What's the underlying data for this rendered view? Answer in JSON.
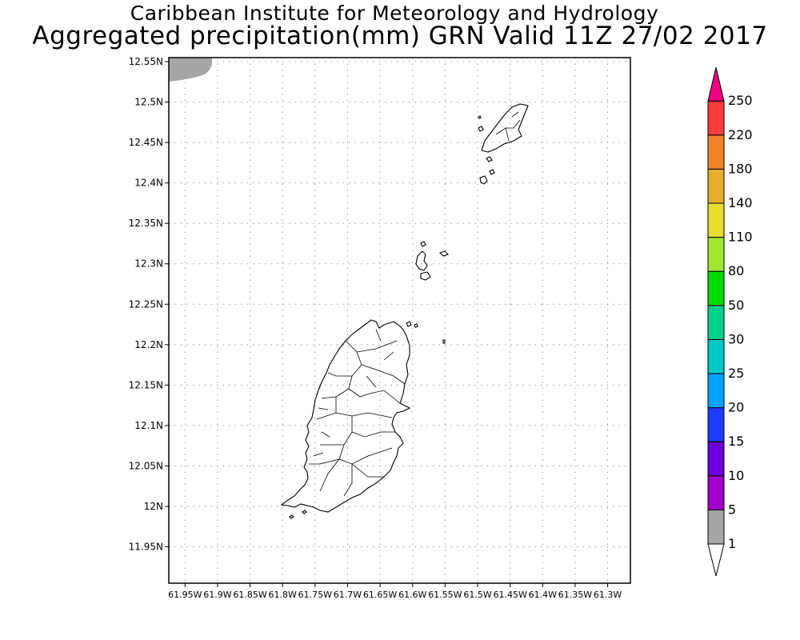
{
  "header": {
    "line1": "Caribbean Institute for Meteorology and Hydrology",
    "line2": "Aggregated precipitation(mm) GRN Valid 11Z 27/02 2017"
  },
  "map": {
    "lat_range": [
      11.905,
      12.555
    ],
    "lon_range": [
      -61.975,
      -61.265
    ],
    "lat_ticks": [
      {
        "value": 12.55,
        "label": "12.55N"
      },
      {
        "value": 12.5,
        "label": "12.5N"
      },
      {
        "value": 12.45,
        "label": "12.45N"
      },
      {
        "value": 12.4,
        "label": "12.4N"
      },
      {
        "value": 12.35,
        "label": "12.35N"
      },
      {
        "value": 12.3,
        "label": "12.3N"
      },
      {
        "value": 12.25,
        "label": "12.25N"
      },
      {
        "value": 12.2,
        "label": "12.2N"
      },
      {
        "value": 12.15,
        "label": "12.15N"
      },
      {
        "value": 12.1,
        "label": "12.1N"
      },
      {
        "value": 12.05,
        "label": "12.05N"
      },
      {
        "value": 12.0,
        "label": "12N"
      },
      {
        "value": 11.95,
        "label": "11.95N"
      }
    ],
    "lon_ticks": [
      {
        "value": -61.95,
        "label": "61.95W"
      },
      {
        "value": -61.9,
        "label": "61.9W"
      },
      {
        "value": -61.85,
        "label": "61.85W"
      },
      {
        "value": -61.8,
        "label": "61.8W"
      },
      {
        "value": -61.75,
        "label": "61.75W"
      },
      {
        "value": -61.7,
        "label": "61.7W"
      },
      {
        "value": -61.65,
        "label": "61.65W"
      },
      {
        "value": -61.6,
        "label": "61.6W"
      },
      {
        "value": -61.55,
        "label": "61.55W"
      },
      {
        "value": -61.5,
        "label": "61.5W"
      },
      {
        "value": -61.45,
        "label": "61.45W"
      },
      {
        "value": -61.4,
        "label": "61.4W"
      },
      {
        "value": -61.35,
        "label": "61.35W"
      },
      {
        "value": -61.3,
        "label": "61.3W"
      }
    ],
    "grid": true,
    "precip_area_color": "#a6a6a6"
  },
  "colorbar": {
    "levels": [
      {
        "label": "1",
        "color": "#a6a6a6"
      },
      {
        "label": "5",
        "color": "#a000c8"
      },
      {
        "label": "10",
        "color": "#6e00dc"
      },
      {
        "label": "15",
        "color": "#1e3cff"
      },
      {
        "label": "20",
        "color": "#00a0ff"
      },
      {
        "label": "25",
        "color": "#00c8c8"
      },
      {
        "label": "30",
        "color": "#00d28c"
      },
      {
        "label": "50",
        "color": "#00dc00"
      },
      {
        "label": "80",
        "color": "#a0e632"
      },
      {
        "label": "110",
        "color": "#e6dc32"
      },
      {
        "label": "140",
        "color": "#e6af2d"
      },
      {
        "label": "180",
        "color": "#f08228"
      },
      {
        "label": "220",
        "color": "#fa3c3c"
      },
      {
        "label": "250",
        "color": "#f00082"
      }
    ]
  }
}
